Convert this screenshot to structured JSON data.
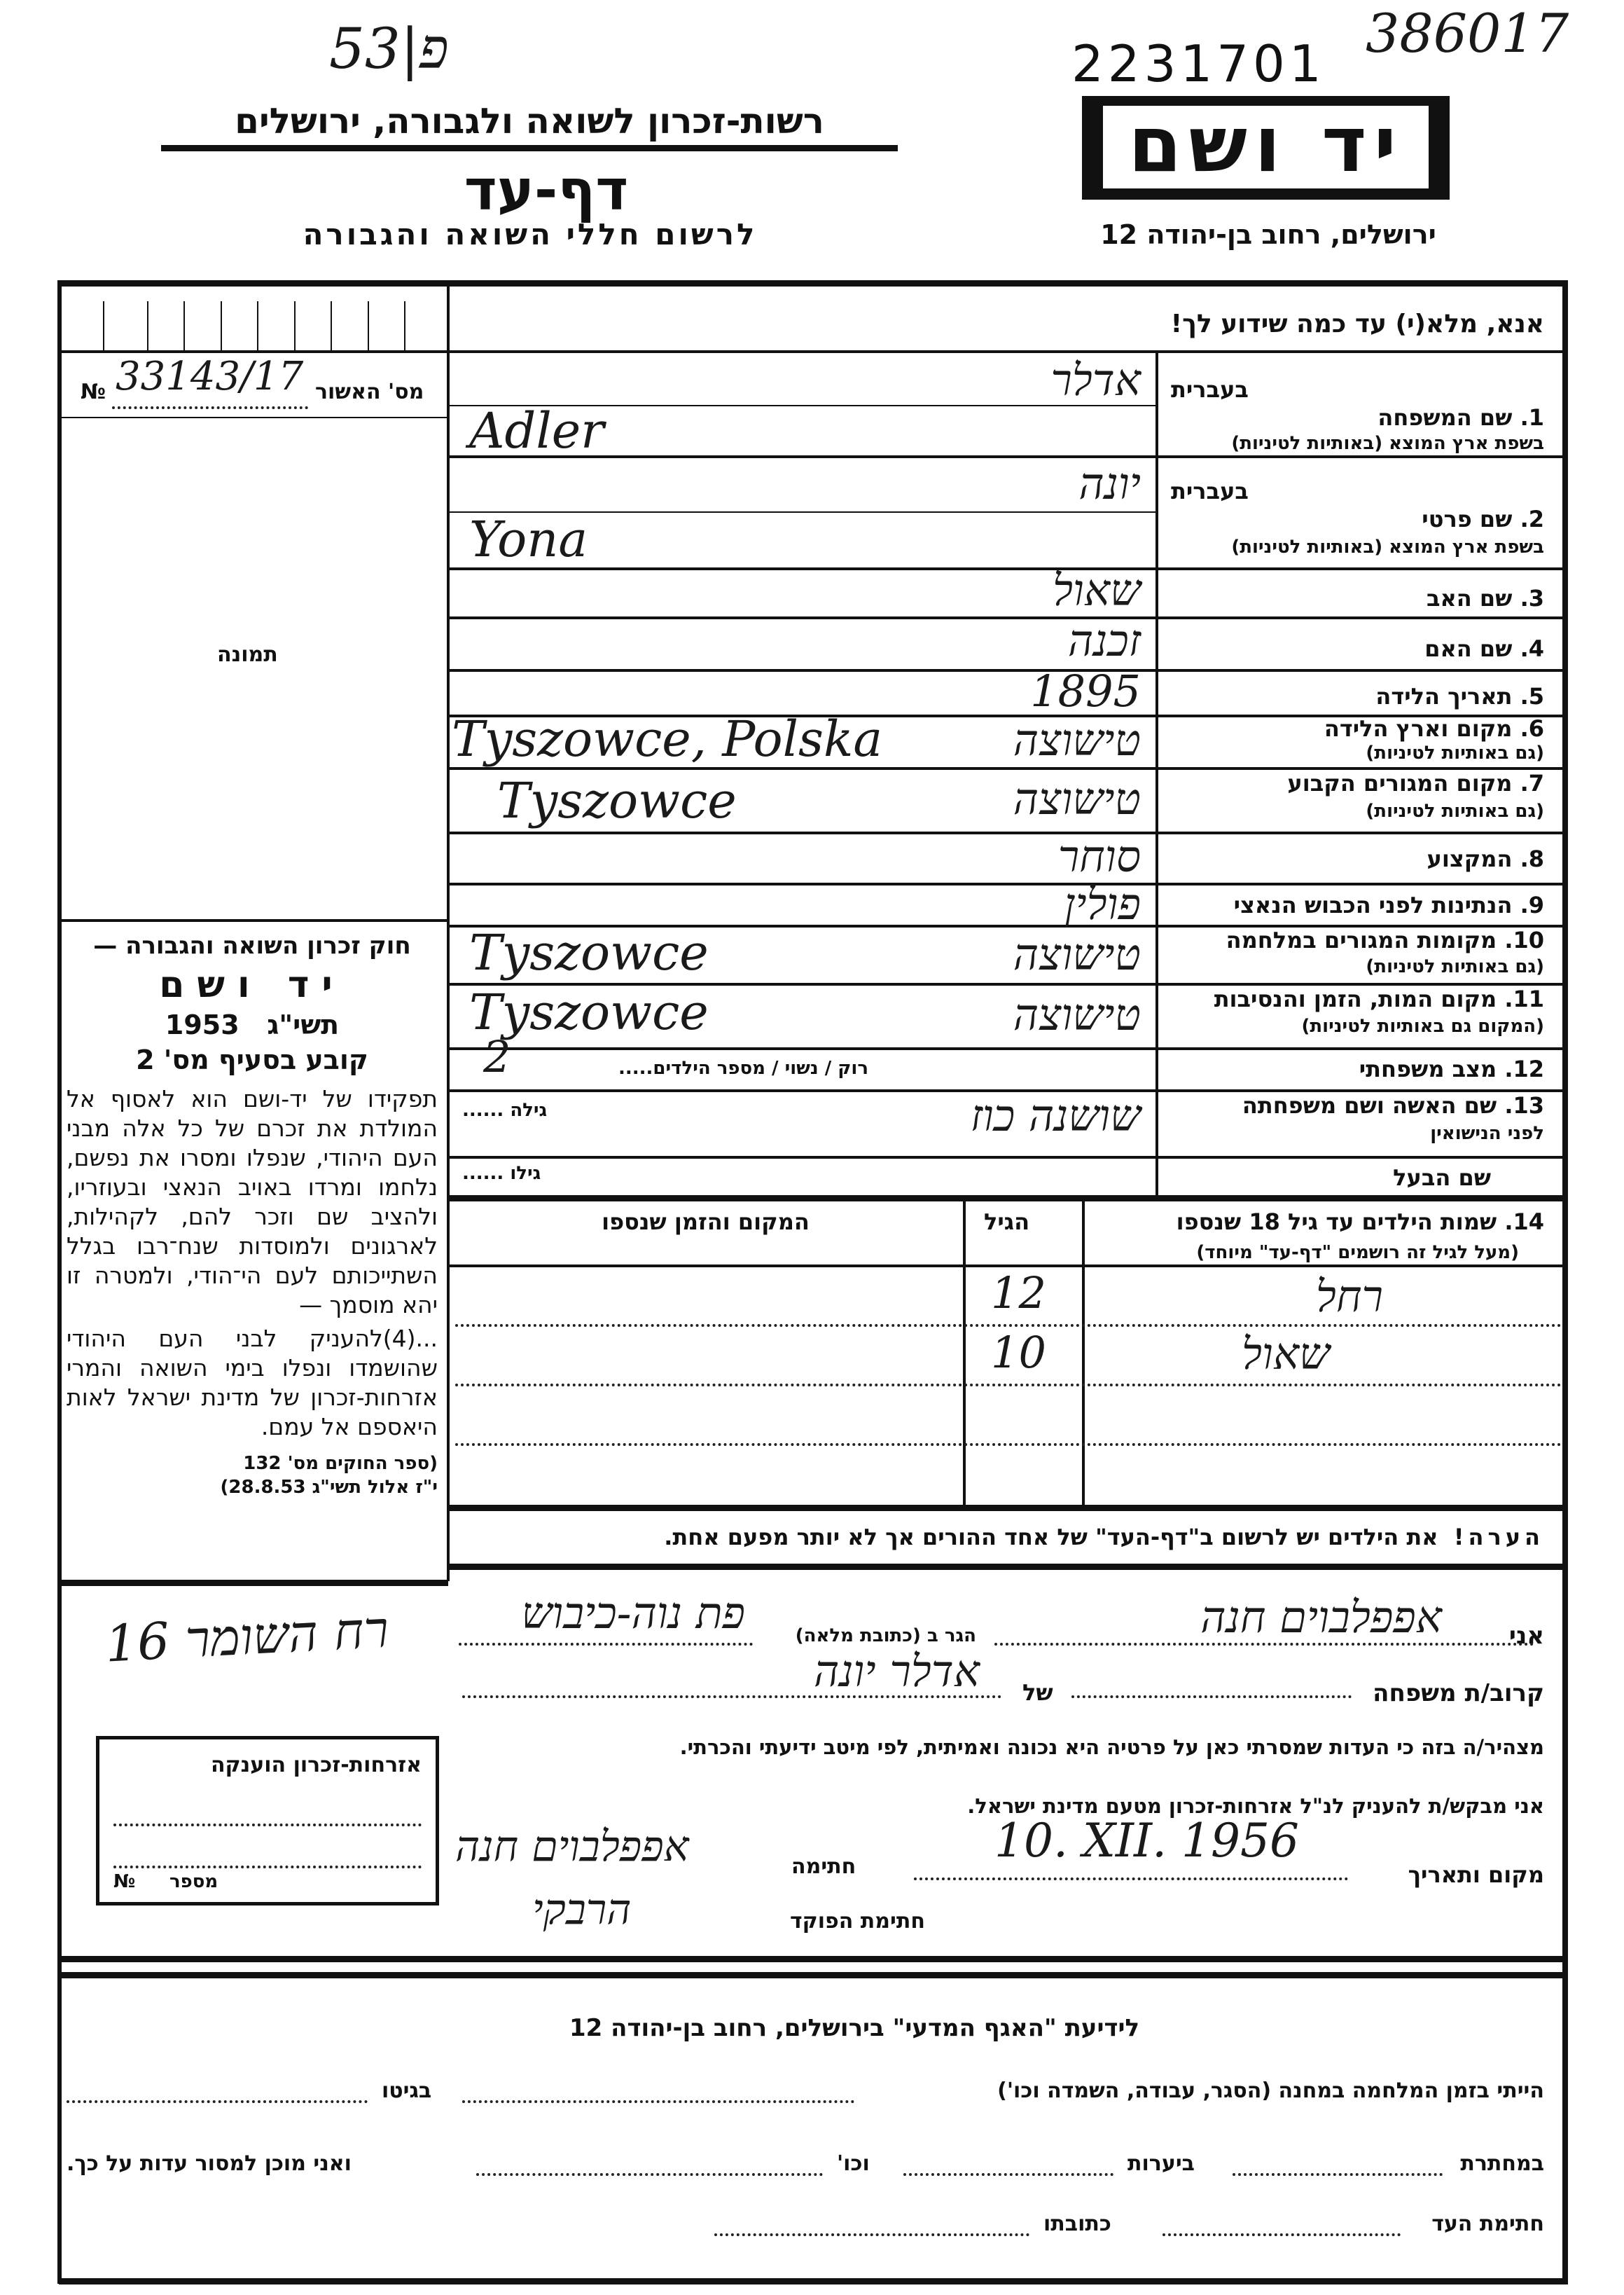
{
  "archive_marks": {
    "folder": "53|פ",
    "item_number": "2231701",
    "handwritten_number": "386017"
  },
  "logo": {
    "text": "יד ושם"
  },
  "header": {
    "authority": "רשות-זכרון לשואה ולגבורה, ירושלים",
    "title": "דף-עד",
    "subtitle": "לרשום חללי השואה והגבורה",
    "address": "ירושלים, רחוב בן-יהודה 12"
  },
  "instruction": "אנא, מלא(י) עד כמה שידוע לך!",
  "left_column": {
    "approval_label": "מס' האשור",
    "approval_no_symbol": "№",
    "approval_number": "33143/17",
    "photo_label": "תמונה",
    "law_title": "חוק זכרון השואה והגבורה —",
    "law_name": "יד ושם",
    "law_year_hebrew": "תשי\"ג",
    "law_year": "1953",
    "law_section": "קובע בסעיף מס' 2",
    "law_text": "תפקידו של יד-ושם הוא לאסוף אל המולדת את זכרם של כל אלה מבני העם היהודי, שנפלו ומסרו את נפשם, נלחמו ומרדו באויב הנאצי ובעוזריו, ולהציב שם וזכר להם, לקהילות, לארגונים ולמוסדות שנח־רבו בגלל השתייכותם לעם הי־הודי, ולמטרה זו יהא מוסמך —",
    "law_text_2": "...(4)להעניק לבני העם היהודי שהושמדו ונפלו בימי השואה והמרי אזרחות-זכרון של מדינת ישראל לאות היאספם אל עמם.",
    "law_ref_1": "(ספר החוקים מס' 132",
    "law_ref_2": "י\"ז אלול תשי\"ג 28.8.53)"
  },
  "fields": [
    {
      "label": "1. שם המשפחה",
      "hebrew_tag": "בעברית",
      "sub": "בשפת ארץ המוצא (באותיות לטיניות)",
      "value_he": "אדלר",
      "value_latin": "Adler"
    },
    {
      "label": "2. שם פרטי",
      "hebrew_tag": "בעברית",
      "sub": "בשפת ארץ המוצא (באותיות לטיניות)",
      "value_he": "יונה",
      "value_latin": "Yona"
    },
    {
      "label": "3. שם האב",
      "value_he": "שאול"
    },
    {
      "label": "4. שם האם",
      "value_he": "זכנה"
    },
    {
      "label": "5. תאריך הלידה",
      "value_he": "1895"
    },
    {
      "label": "6. מקום וארץ הלידה",
      "sub": "(גם באותיות לטיניות)",
      "value_he": "טישוצה",
      "value_latin": "Tyszowce, Polska"
    },
    {
      "label": "7. מקום המגורים הקבוע",
      "sub": "(גם באותיות לטיניות)",
      "value_he": "טישוצה",
      "value_latin": "Tyszowce"
    },
    {
      "label": "8. המקצוע",
      "value_he": "סוחר"
    },
    {
      "label": "9. הנתינות לפני הכבוש הנאצי",
      "value_he": "פולין"
    },
    {
      "label": "10. מקומות המגורים במלחמה",
      "sub": "(גם באותיות לטיניות)",
      "value_he": "טישוצה",
      "value_latin": "Tyszowce"
    },
    {
      "label": "11. מקום המות, הזמן והנסיבות",
      "sub": "(המקום גם באותיות לטיניות)",
      "value_he": "טישוצה",
      "value_latin": "Tyszowce"
    },
    {
      "label": "12. מצב משפחתי",
      "inline_label": "רוק / נשוי / מספר הילדים.....",
      "value": "2"
    },
    {
      "label": "13. שם האשה ושם משפחתה",
      "sub": "לפני הנישואין",
      "age_label": "גילה ......",
      "value_he": "שושנה כוז"
    },
    {
      "label": "שם הבעל",
      "age_label": "גילו ......"
    }
  ],
  "children": {
    "label": "14. שמות הילדים עד גיל 18 שנספו",
    "sub": "(מעל לגיל זה רושמים \"דף-עד\" מיוחד)",
    "col_age": "הגיל",
    "col_place": "המקום והזמן שנספו",
    "rows": [
      {
        "name": "רחל",
        "age": "12",
        "place": ""
      },
      {
        "name": "שאול",
        "age": "10",
        "place": ""
      },
      {
        "name": "",
        "age": "",
        "place": ""
      },
      {
        "name": "",
        "age": "",
        "place": ""
      }
    ]
  },
  "warning": {
    "prefix": "הערה!",
    "text": "את הילדים יש לרשום ב\"דף-העד\" של אחד ההורים אך לא יותר מפעם אחת."
  },
  "declaration": {
    "i_label": "אני",
    "witness_name": "אפפלבוים חנה",
    "resides_label": "הגר ב (כתובת מלאה)",
    "address": "פת נוה-כיבוש",
    "address_margin": "רח השומר 16",
    "relative_label": "קרוב/ת משפחה",
    "of_label": "של",
    "victim_name": "אדלר יונה",
    "statement": "מצהיר/ה בזה כי העדות שמסרתי כאן על פרטיה היא נכונה ואמיתית, לפי מיטב ידיעתי והכרתי.",
    "request": "אני מבקש/ת להעניק לנ\"ל אזרחות-זכרון מטעם מדינת ישראל.",
    "place_date_label": "מקום ותאריך",
    "date": "10. XII. 1956",
    "signature_label": "חתימה",
    "signature": "אפפלבוים חנה",
    "officer_label": "חתימת הפוקד",
    "officer_signature": "הרבקי"
  },
  "stamp_box": {
    "title": "אזרחות-זכרון הוענקה",
    "number_label": "מספר",
    "no_symbol": "№"
  },
  "bottom": {
    "title": "לידיעת \"האגף המדעי\" בירושלים, רחוב בן-יהודה 12",
    "line1_a": "הייתי בזמן המלחמה במחנה (הסגר, עבודה, השמדה וכו')",
    "line1_b": "בגיטו",
    "line2_a": "במחתרת",
    "line2_b": "ביערות",
    "line2_c": "וכו'",
    "line2_d": "ואני מוכן למסור עדות על כך.",
    "line3_a": "חתימת העד",
    "line3_b": "כתובתו"
  }
}
